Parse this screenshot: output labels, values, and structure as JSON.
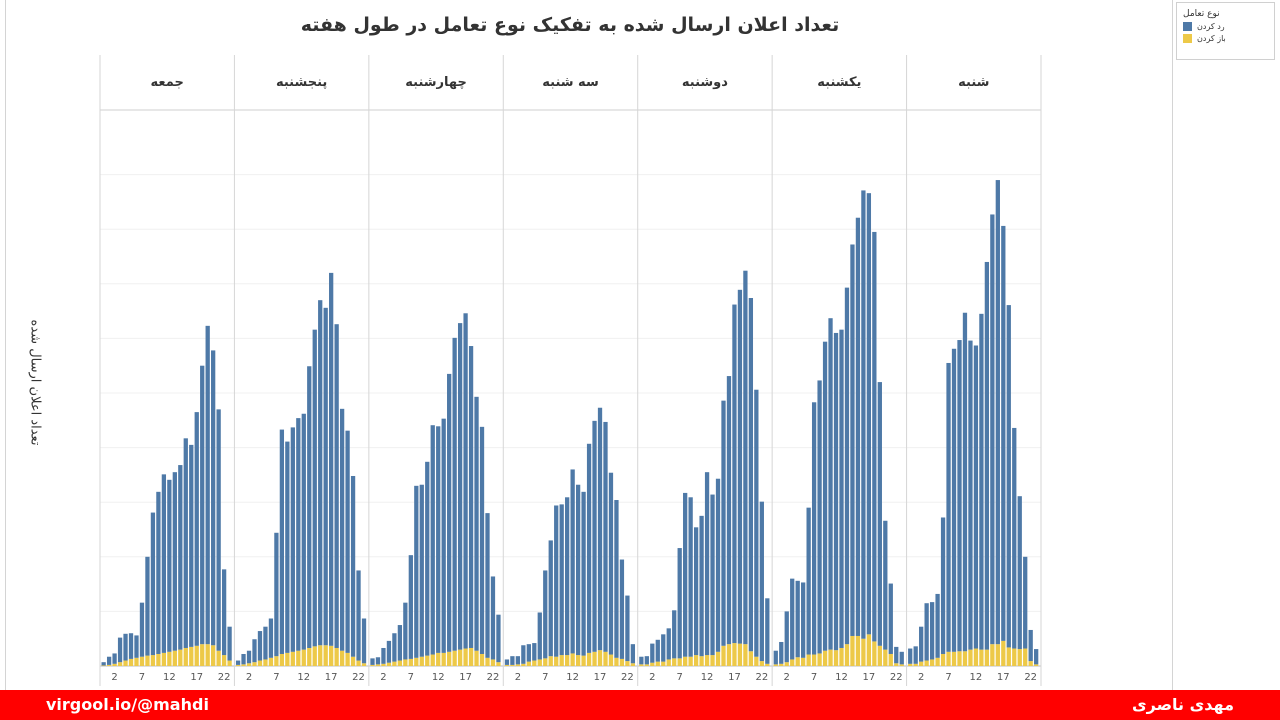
{
  "chart_data": {
    "type": "bar",
    "stacked": true,
    "title": "تعداد اعلان ارسال شده به تفکیک نوع تعامل در طول هفته",
    "ylabel": "تعداد اعلان ارسال شده",
    "xlabel": "",
    "panels": [
      "شنبه",
      "یکشنبه",
      "دوشنبه",
      "سه شنبه",
      "چهارشنبه",
      "پنجشنبه",
      "جمعه"
    ],
    "hours": [
      0,
      1,
      2,
      3,
      4,
      5,
      6,
      7,
      8,
      9,
      10,
      11,
      12,
      13,
      14,
      15,
      16,
      17,
      18,
      19,
      20,
      21,
      22,
      23
    ],
    "tick_labels": [
      "2",
      "7",
      "12",
      "17",
      "22"
    ],
    "tick_hours": [
      2,
      7,
      12,
      17,
      22
    ],
    "ylim": [
      0,
      1000
    ],
    "grid": true,
    "legend": {
      "title": "نوع تعامل",
      "position": "top-right"
    },
    "series": [
      {
        "name": "رد کردن",
        "color": "#4e79a7",
        "values": [
          [
            28,
            32,
            64,
            105,
            105,
            117,
            250,
            529,
            555,
            570,
            620,
            566,
            555,
            615,
            710,
            787,
            850,
            760,
            627,
            404,
            280,
            168,
            57,
            28
          ],
          [
            25,
            40,
            93,
            148,
            140,
            138,
            269,
            462,
            500,
            566,
            607,
            581,
            583,
            653,
            717,
            766,
            821,
            808,
            750,
            483,
            236,
            129,
            30,
            23
          ],
          [
            14,
            15,
            35,
            40,
            50,
            57,
            88,
            202,
            300,
            292,
            234,
            257,
            335,
            294,
            317,
            449,
            491,
            620,
            648,
            684,
            647,
            489,
            292,
            120
          ],
          [
            10,
            16,
            15,
            34,
            32,
            32,
            86,
            161,
            212,
            277,
            276,
            289,
            337,
            312,
            300,
            383,
            423,
            444,
            421,
            333,
            289,
            182,
            120,
            35
          ],
          [
            12,
            13,
            29,
            40,
            52,
            65,
            104,
            190,
            315,
            315,
            355,
            420,
            415,
            429,
            509,
            573,
            598,
            614,
            553,
            465,
            416,
            265,
            152,
            87
          ],
          [
            8,
            19,
            23,
            42,
            54,
            60,
            72,
            226,
            411,
            387,
            411,
            426,
            432,
            516,
            580,
            632,
            618,
            683,
            593,
            443,
            407,
            331,
            165,
            82
          ],
          [
            6,
            15,
            19,
            45,
            49,
            47,
            41,
            99,
            181,
            261,
            297,
            327,
            315,
            327,
            338,
            384,
            370,
            428,
            510,
            583,
            540,
            442,
            157,
            62
          ]
        ]
      },
      {
        "name": "باز کردن",
        "color": "#edc948",
        "values": [
          [
            4,
            4,
            8,
            10,
            12,
            15,
            22,
            26,
            26,
            27,
            27,
            30,
            32,
            30,
            30,
            40,
            40,
            46,
            34,
            32,
            31,
            32,
            9,
            3
          ],
          [
            3,
            4,
            7,
            12,
            16,
            15,
            21,
            21,
            23,
            28,
            30,
            29,
            33,
            40,
            55,
            55,
            50,
            58,
            45,
            37,
            30,
            22,
            5,
            3
          ],
          [
            3,
            3,
            6,
            8,
            8,
            12,
            14,
            14,
            17,
            17,
            20,
            18,
            20,
            20,
            26,
            37,
            40,
            42,
            41,
            40,
            27,
            17,
            9,
            4
          ],
          [
            2,
            2,
            3,
            4,
            8,
            10,
            12,
            14,
            18,
            17,
            20,
            20,
            23,
            20,
            19,
            24,
            26,
            29,
            26,
            21,
            15,
            13,
            9,
            5
          ],
          [
            2,
            3,
            4,
            6,
            8,
            10,
            12,
            13,
            15,
            17,
            19,
            21,
            24,
            24,
            26,
            28,
            30,
            32,
            33,
            28,
            22,
            15,
            12,
            7
          ],
          [
            2,
            3,
            5,
            7,
            10,
            12,
            15,
            18,
            22,
            24,
            26,
            28,
            30,
            33,
            36,
            38,
            38,
            37,
            33,
            28,
            24,
            17,
            10,
            5
          ],
          [
            1,
            2,
            4,
            7,
            10,
            13,
            15,
            17,
            19,
            20,
            22,
            24,
            26,
            28,
            30,
            33,
            35,
            37,
            40,
            40,
            38,
            28,
            20,
            10
          ]
        ]
      }
    ]
  },
  "footer": {
    "left_text": "virgool.io/@mahdi",
    "right_text": "مهدی ناصری"
  }
}
